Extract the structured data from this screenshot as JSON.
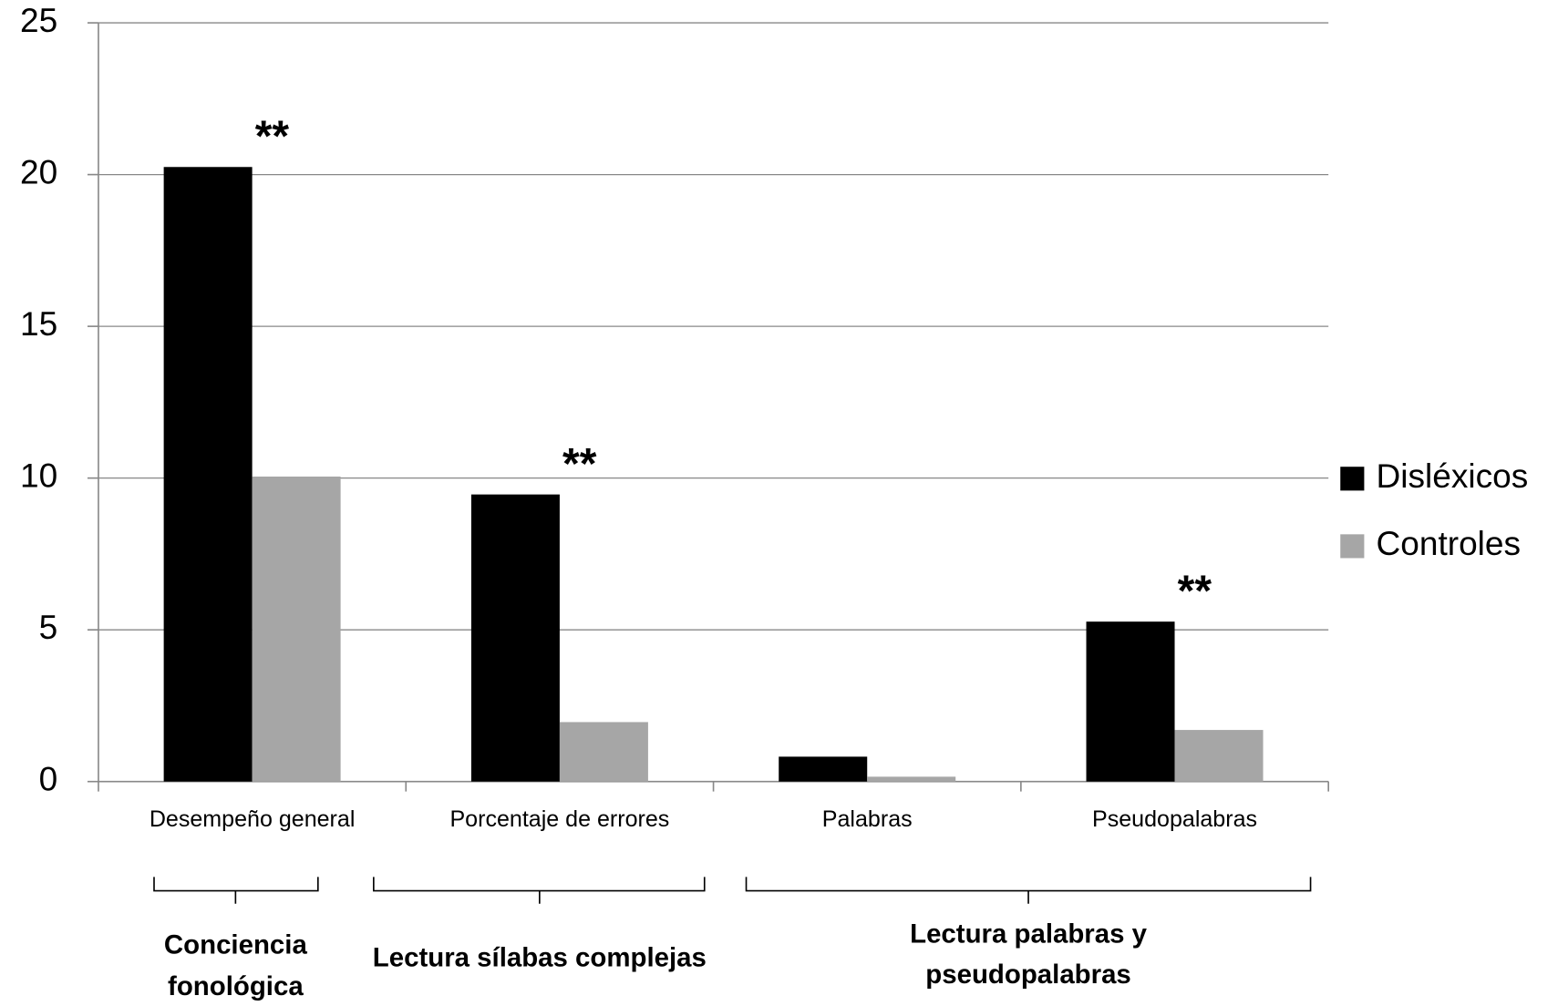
{
  "chart_data": {
    "type": "bar",
    "categories": [
      "Desempeño general",
      "Porcentaje de errores",
      "Palabras",
      "Pseudopalabras"
    ],
    "series": [
      {
        "name": "Disléxicos",
        "color": "#000000",
        "values": [
          20.25,
          9.46,
          0.82,
          5.27
        ]
      },
      {
        "name": "Controles",
        "color": "#a6a6a6",
        "values": [
          10.05,
          1.96,
          0.16,
          1.7
        ]
      }
    ],
    "annotations": [
      "**",
      "**",
      null,
      "**"
    ],
    "groups": [
      {
        "label": [
          "Conciencia",
          "fonológica"
        ]
      },
      {
        "label": [
          "Lectura sílabas complejas"
        ]
      },
      {
        "label": [
          "Lectura palabras y",
          "pseudopalabras"
        ]
      }
    ],
    "ylim": [
      0,
      25
    ],
    "yticks": [
      0,
      5,
      10,
      15,
      20,
      25
    ],
    "grid": true,
    "legend": "right"
  }
}
